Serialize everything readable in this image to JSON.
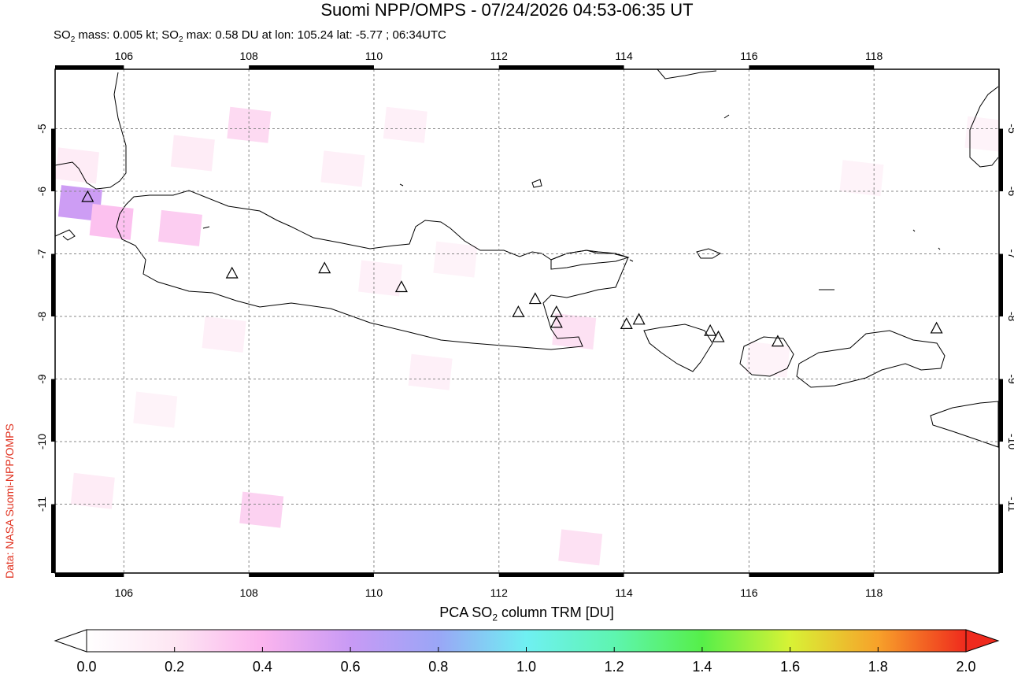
{
  "title": "Suomi NPP/OMPS - 07/24/2026 04:53-06:35 UT",
  "subtitle": {
    "mass_prefix": "SO",
    "mass_sub": "2",
    "mass_text": " mass: 0.005 kt; SO",
    "max_sub": "2",
    "max_text": " max: 0.58 DU at lon: 105.24 lat: -5.77 ; 06:34UTC"
  },
  "credit": "Data: NASA Suomi-NPP/OMPS",
  "colorbar": {
    "title_prefix": "PCA SO",
    "title_sub": "2",
    "title_suffix": " column TRM [DU]",
    "ticks": [
      "0.0",
      "0.2",
      "0.4",
      "0.6",
      "0.8",
      "1.0",
      "1.2",
      "1.4",
      "1.6",
      "1.8",
      "2.0"
    ],
    "stops": [
      "#ffffff",
      "#fde6f3",
      "#fbb4ee",
      "#c89af5",
      "#9aa6f6",
      "#6ff0f2",
      "#5ef5b0",
      "#56ef49",
      "#d8f235",
      "#f7a12a",
      "#ef2a1d"
    ]
  },
  "map": {
    "lon_range": [
      104.9,
      120.0
    ],
    "lat_range": [
      -12.1,
      -4.05
    ],
    "lon_ticks": [
      "106",
      "108",
      "110",
      "112",
      "114",
      "116",
      "118"
    ],
    "lat_ticks": [
      "-5",
      "-6",
      "-7",
      "-8",
      "-9",
      "-10",
      "-11"
    ],
    "volcanoes": [
      [
        105.42,
        -6.1
      ],
      [
        107.73,
        -7.32
      ],
      [
        109.21,
        -7.24
      ],
      [
        110.44,
        -7.54
      ],
      [
        112.31,
        -7.94
      ],
      [
        112.58,
        -7.73
      ],
      [
        112.92,
        -7.94
      ],
      [
        112.92,
        -8.11
      ],
      [
        114.04,
        -8.13
      ],
      [
        114.24,
        -8.06
      ],
      [
        115.38,
        -8.24
      ],
      [
        115.51,
        -8.34
      ],
      [
        116.46,
        -8.41
      ],
      [
        119.0,
        -8.2
      ]
    ],
    "so2_cells": [
      [
        105.0,
        -5.9,
        0.58
      ],
      [
        105.5,
        -6.2,
        0.35
      ],
      [
        104.95,
        -5.3,
        0.15
      ],
      [
        106.6,
        -6.3,
        0.3
      ],
      [
        107.7,
        -4.65,
        0.25
      ],
      [
        109.2,
        -5.35,
        0.12
      ],
      [
        110.2,
        -4.65,
        0.12
      ],
      [
        106.8,
        -5.1,
        0.15
      ],
      [
        112.9,
        -7.95,
        0.22
      ],
      [
        107.9,
        -10.8,
        0.28
      ],
      [
        113.0,
        -11.4,
        0.22
      ],
      [
        105.2,
        -10.5,
        0.15
      ],
      [
        110.6,
        -8.6,
        0.12
      ],
      [
        117.5,
        -5.5,
        0.1
      ],
      [
        119.5,
        -4.8,
        0.1
      ],
      [
        116.0,
        -8.4,
        0.1
      ],
      [
        109.8,
        -7.1,
        0.12
      ],
      [
        111.0,
        -6.8,
        0.1
      ],
      [
        107.3,
        -8.0,
        0.12
      ],
      [
        106.2,
        -9.2,
        0.1
      ]
    ]
  }
}
